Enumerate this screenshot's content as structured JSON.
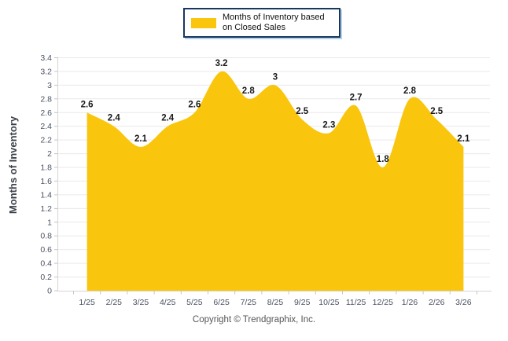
{
  "chart_data": {
    "type": "area",
    "categories": [
      "1/25",
      "2/25",
      "3/25",
      "4/25",
      "5/25",
      "6/25",
      "7/25",
      "8/25",
      "9/25",
      "10/25",
      "11/25",
      "12/25",
      "1/26",
      "2/26",
      "3/26"
    ],
    "values": [
      2.6,
      2.4,
      2.1,
      2.4,
      2.6,
      3.2,
      2.8,
      3,
      2.5,
      2.3,
      2.7,
      1.8,
      2.8,
      2.5,
      2.1
    ],
    "title": "",
    "xlabel": "",
    "ylabel": "Months of Inventory",
    "ylim": [
      0,
      3.4
    ],
    "ytick_step": 0.2,
    "grid": true,
    "smooth": true,
    "data_labels": true,
    "legend_label": "Months of Inventory based on Closed Sales",
    "legend_position": "top-center",
    "colors": {
      "area_fill": "#F9C60D",
      "legend_border": "#17375E",
      "legend_shadow": "#B7D3EC",
      "gridline": "#E9E9E9",
      "axis_line": "#D5D5D5",
      "tick": "#C3C3C3",
      "tick_label": "#4A5262",
      "data_label": "#1A1A1A",
      "axis_title": "#3A4049",
      "copyright": "#555555"
    }
  },
  "footer": {
    "copyright": "Copyright © Trendgraphix, Inc."
  }
}
